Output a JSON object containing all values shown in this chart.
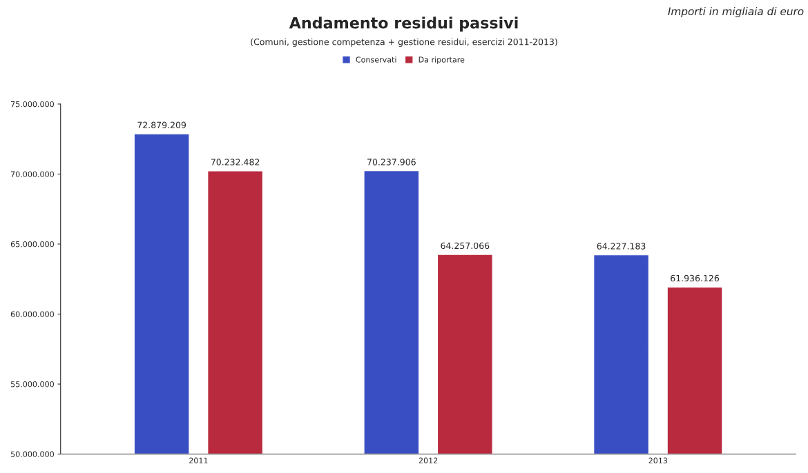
{
  "chart_data": {
    "type": "bar",
    "title": "Andamento residui passivi",
    "subtitle": "(Comuni, gestione competenza + gestione residui, esercizi 2011-2013)",
    "annotations": [
      "Importi in migliaia di euro"
    ],
    "categories": [
      "2011",
      "2012",
      "2013"
    ],
    "series": [
      {
        "name": "Conservati",
        "color": "#3a4ec4",
        "values": [
          72879209,
          70237906,
          64227183
        ],
        "value_labels": [
          "72.879.209",
          "70.237.906",
          "64.227.183"
        ]
      },
      {
        "name": "Da riportare",
        "color": "#b92a3e",
        "values": [
          70232482,
          64257066,
          61936126
        ],
        "value_labels": [
          "70.232.482",
          "64.257.066",
          "61.936.126"
        ]
      }
    ],
    "ylim": [
      50000000,
      75000000
    ],
    "yticks": [
      {
        "value": 50000000,
        "label": "50.000.000"
      },
      {
        "value": 55000000,
        "label": "55.000.000"
      },
      {
        "value": 60000000,
        "label": "60.000.000"
      },
      {
        "value": 65000000,
        "label": "65.000.000"
      },
      {
        "value": 70000000,
        "label": "70.000.000"
      },
      {
        "value": 75000000,
        "label": "75.000.000"
      }
    ],
    "grid": false,
    "legend": "top"
  }
}
